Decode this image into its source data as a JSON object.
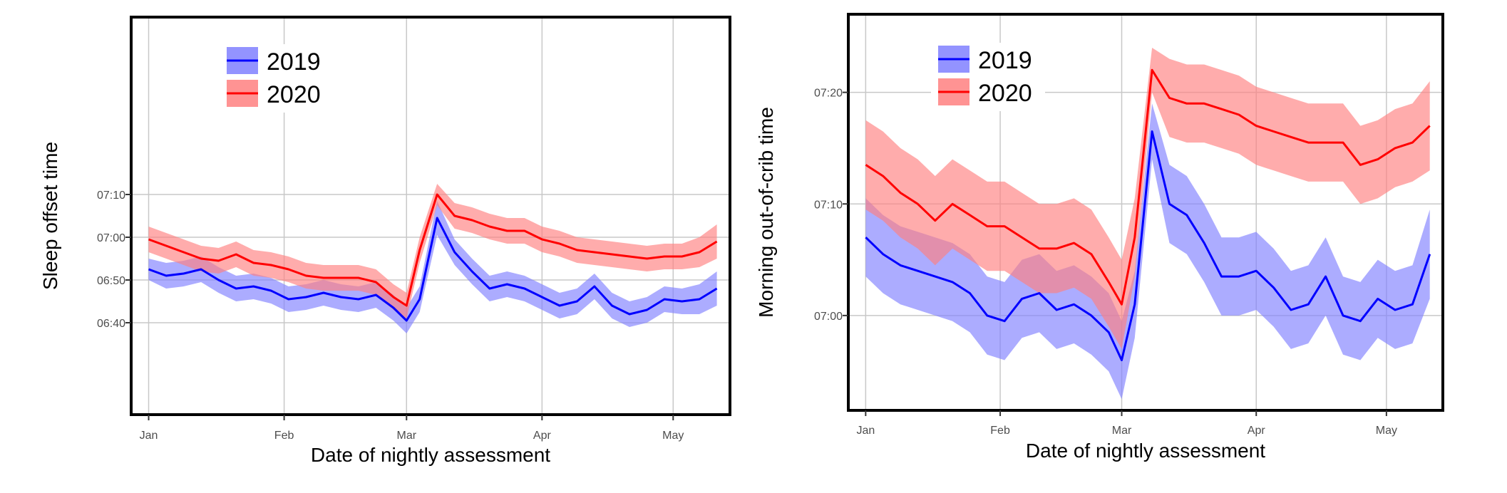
{
  "chart_data": [
    {
      "type": "line",
      "title": "",
      "xlabel": "Date of nightly assessment",
      "ylabel": "Sleep offset time",
      "x_ticks": [
        "Jan",
        "Feb",
        "Mar",
        "Apr",
        "May"
      ],
      "x_tick_positions": [
        0,
        31,
        59,
        90,
        120
      ],
      "xlim": [
        -4,
        133
      ],
      "ylim": [
        -21.5,
        71.5
      ],
      "y_ticks": [
        {
          "label": "06:40",
          "value": 0
        },
        {
          "label": "06:50",
          "value": 10
        },
        {
          "label": "07:00",
          "value": 20
        },
        {
          "label": "07:10",
          "value": 30
        }
      ],
      "y_units": "minutes after 06:40",
      "grid": true,
      "legend_position": "top-left",
      "x": [
        0,
        4,
        8,
        12,
        16,
        20,
        24,
        28,
        32,
        36,
        40,
        44,
        48,
        52,
        56,
        59,
        62,
        66,
        70,
        74,
        78,
        82,
        86,
        90,
        94,
        98,
        102,
        106,
        110,
        114,
        118,
        122,
        126,
        130
      ],
      "series": [
        {
          "name": "2019",
          "color": "#0000ff",
          "band_color": "#8080ff",
          "values": [
            12.5,
            11,
            11.5,
            12.5,
            10,
            8,
            8.5,
            7.5,
            5.5,
            6,
            7,
            6,
            5.5,
            6.5,
            3.5,
            0.5,
            5.5,
            24.5,
            16.5,
            12,
            8,
            9,
            8,
            6,
            4,
            5,
            8.5,
            4,
            2,
            3,
            5.5,
            5,
            5.5,
            8
          ],
          "band": [
            2.5,
            3,
            3,
            3,
            3,
            3,
            3,
            3,
            3,
            3,
            3,
            3,
            3,
            3,
            3,
            3,
            3,
            4,
            3,
            3,
            3,
            3,
            3,
            3,
            3,
            3,
            3,
            3,
            3,
            3,
            3,
            3,
            3.5,
            4
          ]
        },
        {
          "name": "2020",
          "color": "#ff0000",
          "band_color": "#ff8080",
          "values": [
            19.5,
            18,
            16.5,
            15,
            14.5,
            16,
            14,
            13.5,
            12.5,
            11,
            10.5,
            10.5,
            10.5,
            9.5,
            6,
            4,
            17,
            30,
            25,
            24,
            22.5,
            21.5,
            21.5,
            19.5,
            18.5,
            17,
            16.5,
            16,
            15.5,
            15,
            15.5,
            15.5,
            16.5,
            19
          ],
          "band": [
            3,
            3,
            3,
            3,
            3,
            3,
            3,
            3,
            3,
            3,
            3,
            3,
            3,
            3,
            3,
            3,
            3,
            2.5,
            3,
            3,
            3,
            3,
            3,
            3,
            3,
            3,
            3,
            3,
            3,
            3,
            3,
            3,
            3.5,
            4
          ]
        }
      ]
    },
    {
      "type": "line",
      "title": "",
      "xlabel": "Date of nightly assessment",
      "ylabel": "Morning out-of-crib time",
      "x_ticks": [
        "Jan",
        "Feb",
        "Mar",
        "Apr",
        "May"
      ],
      "x_tick_positions": [
        0,
        31,
        59,
        90,
        120
      ],
      "xlim": [
        -4,
        133
      ],
      "ylim": [
        -8.5,
        27
      ],
      "y_ticks": [
        {
          "label": "07:00",
          "value": 0
        },
        {
          "label": "07:10",
          "value": 10
        },
        {
          "label": "07:20",
          "value": 20
        }
      ],
      "y_units": "minutes after 07:00",
      "grid": true,
      "legend_position": "top-left",
      "x": [
        0,
        4,
        8,
        12,
        16,
        20,
        24,
        28,
        32,
        36,
        40,
        44,
        48,
        52,
        56,
        59,
        62,
        66,
        70,
        74,
        78,
        82,
        86,
        90,
        94,
        98,
        102,
        106,
        110,
        114,
        118,
        122,
        126,
        130
      ],
      "series": [
        {
          "name": "2019",
          "color": "#0000ff",
          "band_color": "#8080ff",
          "values": [
            7,
            5.5,
            4.5,
            4,
            3.5,
            3,
            2,
            0,
            -0.5,
            1.5,
            2,
            0.5,
            1,
            0,
            -1.5,
            -4,
            1,
            16.5,
            10,
            9,
            6.5,
            3.5,
            3.5,
            4,
            2.5,
            0.5,
            1,
            3.5,
            0,
            -0.5,
            1.5,
            0.5,
            1,
            5.5
          ],
          "band": [
            3.5,
            3.5,
            3.5,
            3.5,
            3.5,
            3.5,
            3.5,
            3.5,
            3.5,
            3.5,
            3.5,
            3.5,
            3.5,
            3.5,
            3.5,
            3.5,
            3,
            2.5,
            3.5,
            3.5,
            3.5,
            3.5,
            3.5,
            3.5,
            3.5,
            3.5,
            3.5,
            3.5,
            3.5,
            3.5,
            3.5,
            3.5,
            3.5,
            4
          ]
        },
        {
          "name": "2020",
          "color": "#ff0000",
          "band_color": "#ff8080",
          "values": [
            13.5,
            12.5,
            11,
            10,
            8.5,
            10,
            9,
            8,
            8,
            7,
            6,
            6,
            6.5,
            5.5,
            3,
            1,
            7,
            22,
            19.5,
            19,
            19,
            18.5,
            18,
            17,
            16.5,
            16,
            15.5,
            15.5,
            15.5,
            13.5,
            14,
            15,
            15.5,
            17
          ],
          "band": [
            4,
            4,
            4,
            4,
            4,
            4,
            4,
            4,
            4,
            4,
            4,
            4,
            4,
            4,
            4,
            4,
            3.5,
            2,
            3.5,
            3.5,
            3.5,
            3.5,
            3.5,
            3.5,
            3.5,
            3.5,
            3.5,
            3.5,
            3.5,
            3.5,
            3.5,
            3.5,
            3.5,
            4
          ]
        }
      ]
    }
  ]
}
